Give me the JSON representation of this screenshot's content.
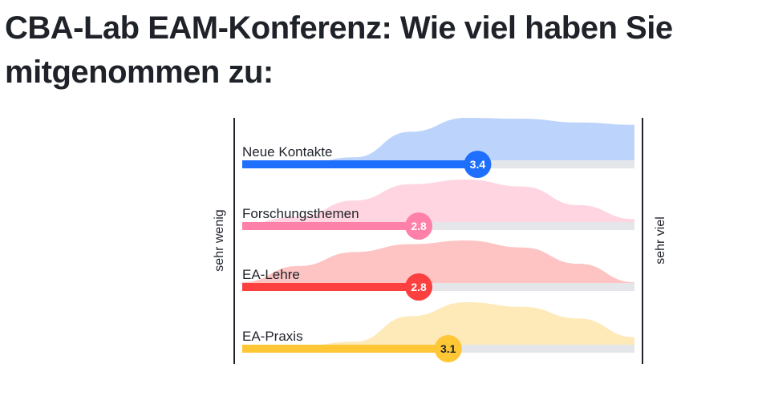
{
  "title": "CBA-Lab EAM-Konferenz: Wie viel haben Sie mitgenommen zu:",
  "scale": {
    "left_label": "sehr wenig",
    "right_label": "sehr viel",
    "min": 1,
    "max": 5
  },
  "chart_data": {
    "type": "scale-distribution",
    "title": "CBA-Lab EAM-Konferenz: Wie viel haben Sie mitgenommen zu:",
    "xlim": [
      1,
      5
    ],
    "xlabel_left": "sehr wenig",
    "xlabel_right": "sehr viel",
    "items": [
      {
        "label": "Neue Kontakte",
        "value": 3.4,
        "bar_color": "#1f6fff",
        "area_color": "#bcd4fb",
        "text_color": "#ffffff",
        "distribution": [
          0.0,
          0.0,
          0.15,
          0.7,
          1.0,
          0.98,
          0.9,
          0.85
        ]
      },
      {
        "label": "Forschungsthemen",
        "value": 2.8,
        "bar_color": "#ff80a8",
        "area_color": "#fed5e1",
        "text_color": "#ffffff",
        "distribution": [
          0.05,
          0.2,
          0.55,
          0.9,
          1.0,
          0.85,
          0.45,
          0.15
        ]
      },
      {
        "label": "EA-Lehre",
        "value": 2.8,
        "bar_color": "#fc3f3f",
        "area_color": "#fec3c3",
        "text_color": "#ffffff",
        "distribution": [
          0.1,
          0.45,
          0.75,
          0.92,
          1.0,
          0.85,
          0.5,
          0.1
        ]
      },
      {
        "label": "EA-Praxis",
        "value": 3.1,
        "bar_color": "#ffc735",
        "area_color": "#feeab9",
        "text_color": "#1f2329",
        "distribution": [
          0.0,
          0.05,
          0.15,
          0.7,
          1.0,
          0.9,
          0.65,
          0.25
        ]
      }
    ]
  }
}
